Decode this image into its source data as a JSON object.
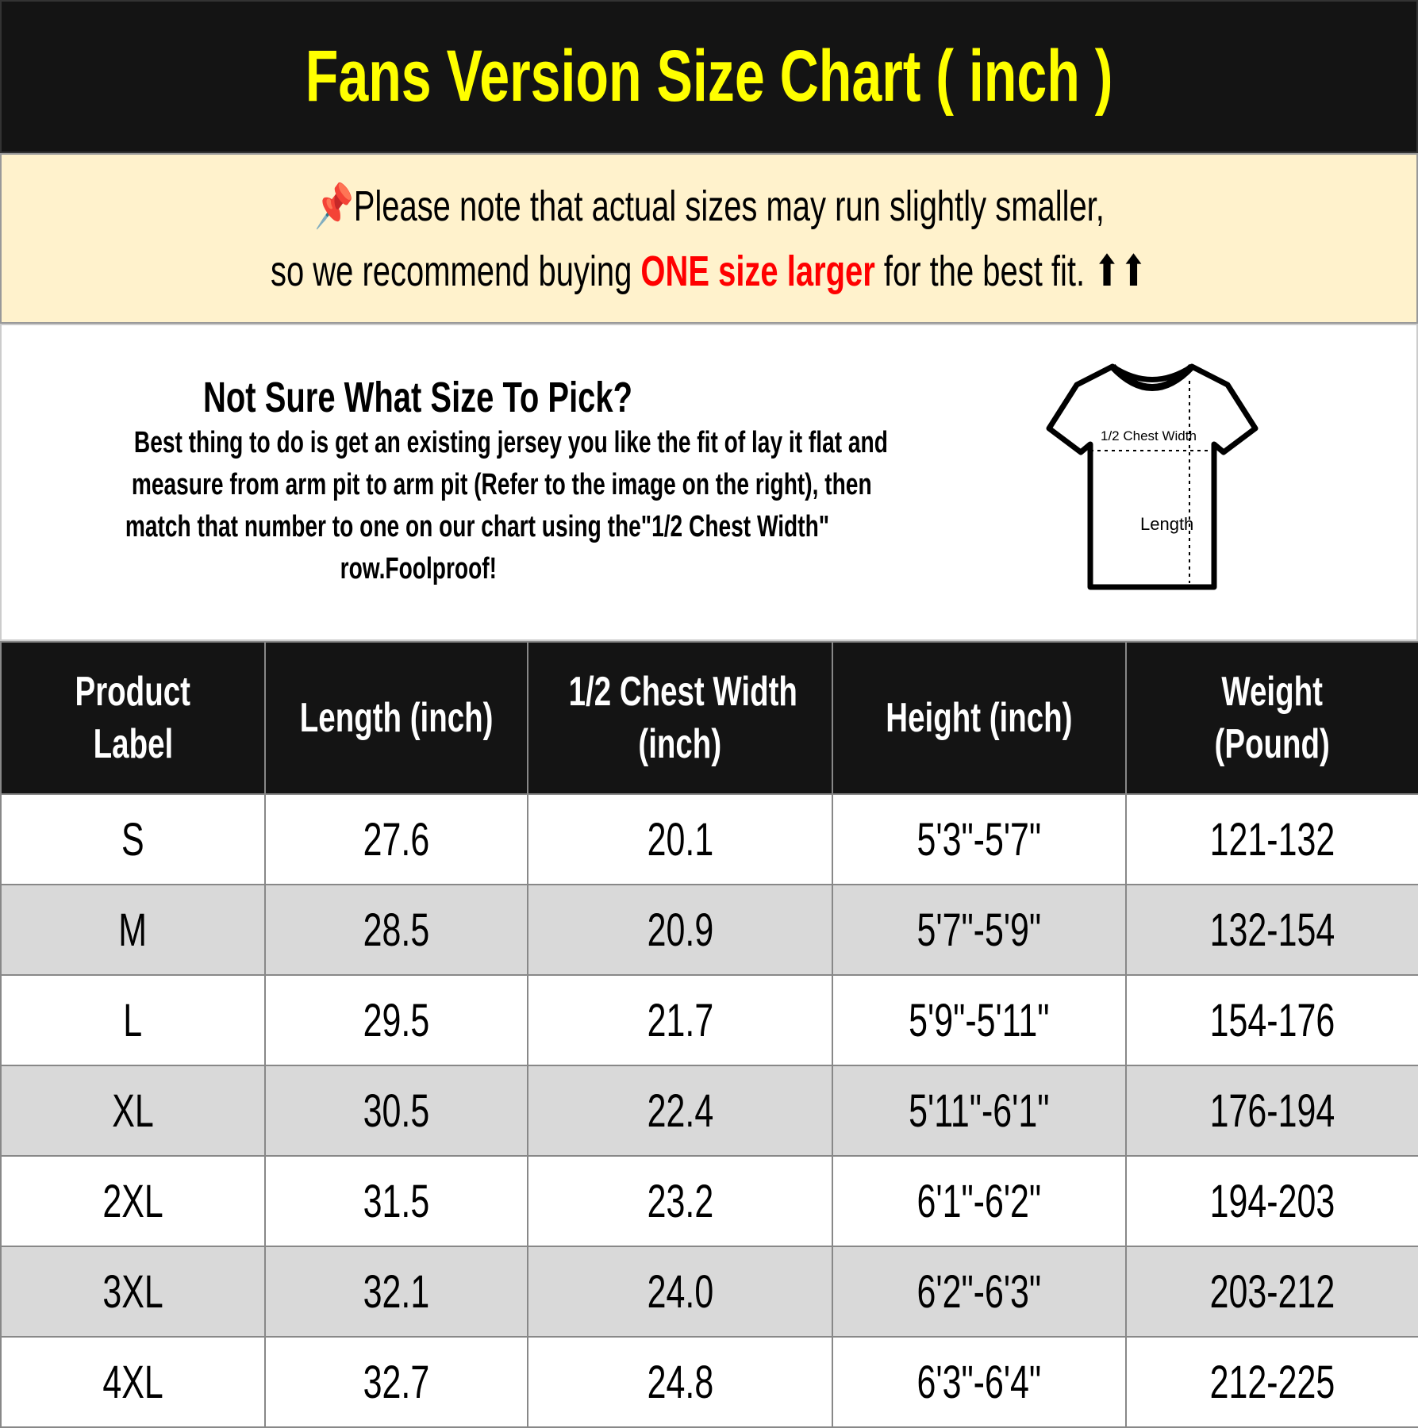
{
  "title": "Fans Version Size Chart ( inch )",
  "note": {
    "line1": "Please note that actual sizes may run slightly smaller,",
    "line2_pre": "so we recommend buying ",
    "line2_highlight": "ONE size larger",
    "line2_post": " for the best fit. ⬆⬆",
    "pin_icon": "pushpin-icon",
    "highlight_color": "#ff0000"
  },
  "guide": {
    "heading": "Not Sure What Size To Pick?",
    "lines": [
      "Best thing to do is get an existing jersey you like the fit of lay it flat and",
      "measure from arm pit to arm pit (Refer to the image on the right), then",
      "match that number to one on our chart using the\"1/2 Chest Width\"",
      "row.Foolproof!"
    ]
  },
  "diagram": {
    "chest_label": "1/2 Chest Width",
    "length_label": "Length"
  },
  "table": {
    "headers": [
      [
        "Product",
        "Label"
      ],
      [
        "Length (inch)"
      ],
      [
        "1/2 Chest Width",
        "(inch)"
      ],
      [
        "Height (inch)"
      ],
      [
        "Weight",
        "(Pound)"
      ]
    ],
    "rows": [
      [
        "S",
        "27.6",
        "20.1",
        "5'3\"-5'7\"",
        "121-132"
      ],
      [
        "M",
        "28.5",
        "20.9",
        "5'7\"-5'9\"",
        "132-154"
      ],
      [
        "L",
        "29.5",
        "21.7",
        "5'9\"-5'11\"",
        "154-176"
      ],
      [
        "XL",
        "30.5",
        "22.4",
        "5'11\"-6'1\"",
        "176-194"
      ],
      [
        "2XL",
        "31.5",
        "23.2",
        "6'1\"-6'2\"",
        "194-203"
      ],
      [
        "3XL",
        "32.1",
        "24.0",
        "6'2\"-6'3\"",
        "203-212"
      ],
      [
        "4XL",
        "32.7",
        "24.8",
        "6'3\"-6'4\"",
        "212-225"
      ]
    ]
  }
}
